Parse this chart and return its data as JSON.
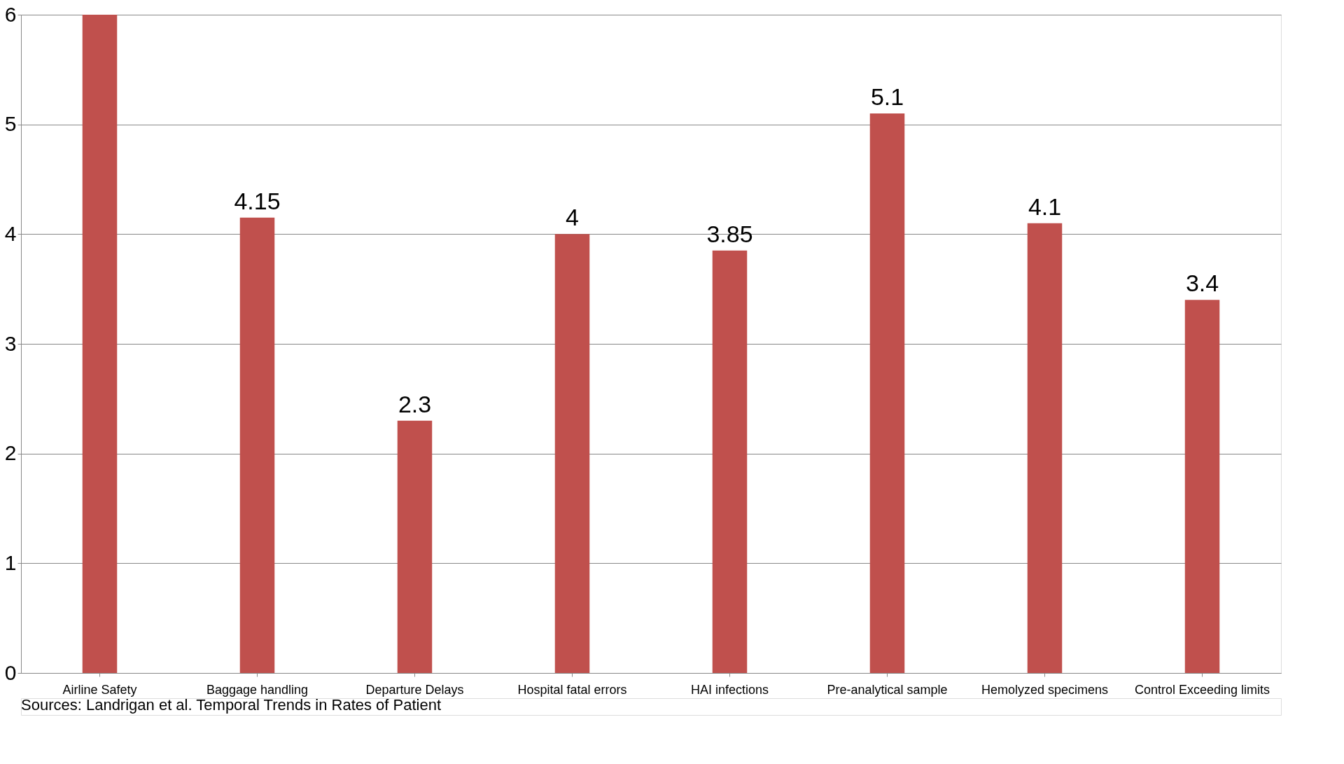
{
  "chart_data": {
    "type": "bar",
    "categories": [
      "Airline Safety",
      "Baggage handling",
      "Departure Delays",
      "Hospital fatal errors",
      "HAI infections",
      "Pre-analytical sample",
      "Hemolyzed specimens",
      "Control Exceeding limits"
    ],
    "values": [
      6,
      4.15,
      2.3,
      4,
      3.85,
      5.1,
      4.1,
      3.4
    ],
    "value_labels": [
      null,
      "4.15",
      "2.3",
      "4",
      "3.85",
      "5.1",
      "4.1",
      "3.4"
    ],
    "color": "#c0504d",
    "ylim": [
      0,
      6
    ],
    "yticks": [
      0,
      1,
      2,
      3,
      4,
      5,
      6
    ],
    "grid": "y",
    "annotations": [
      "Sources: Landrigan et al. Temporal Trends in Rates of Patient"
    ]
  }
}
